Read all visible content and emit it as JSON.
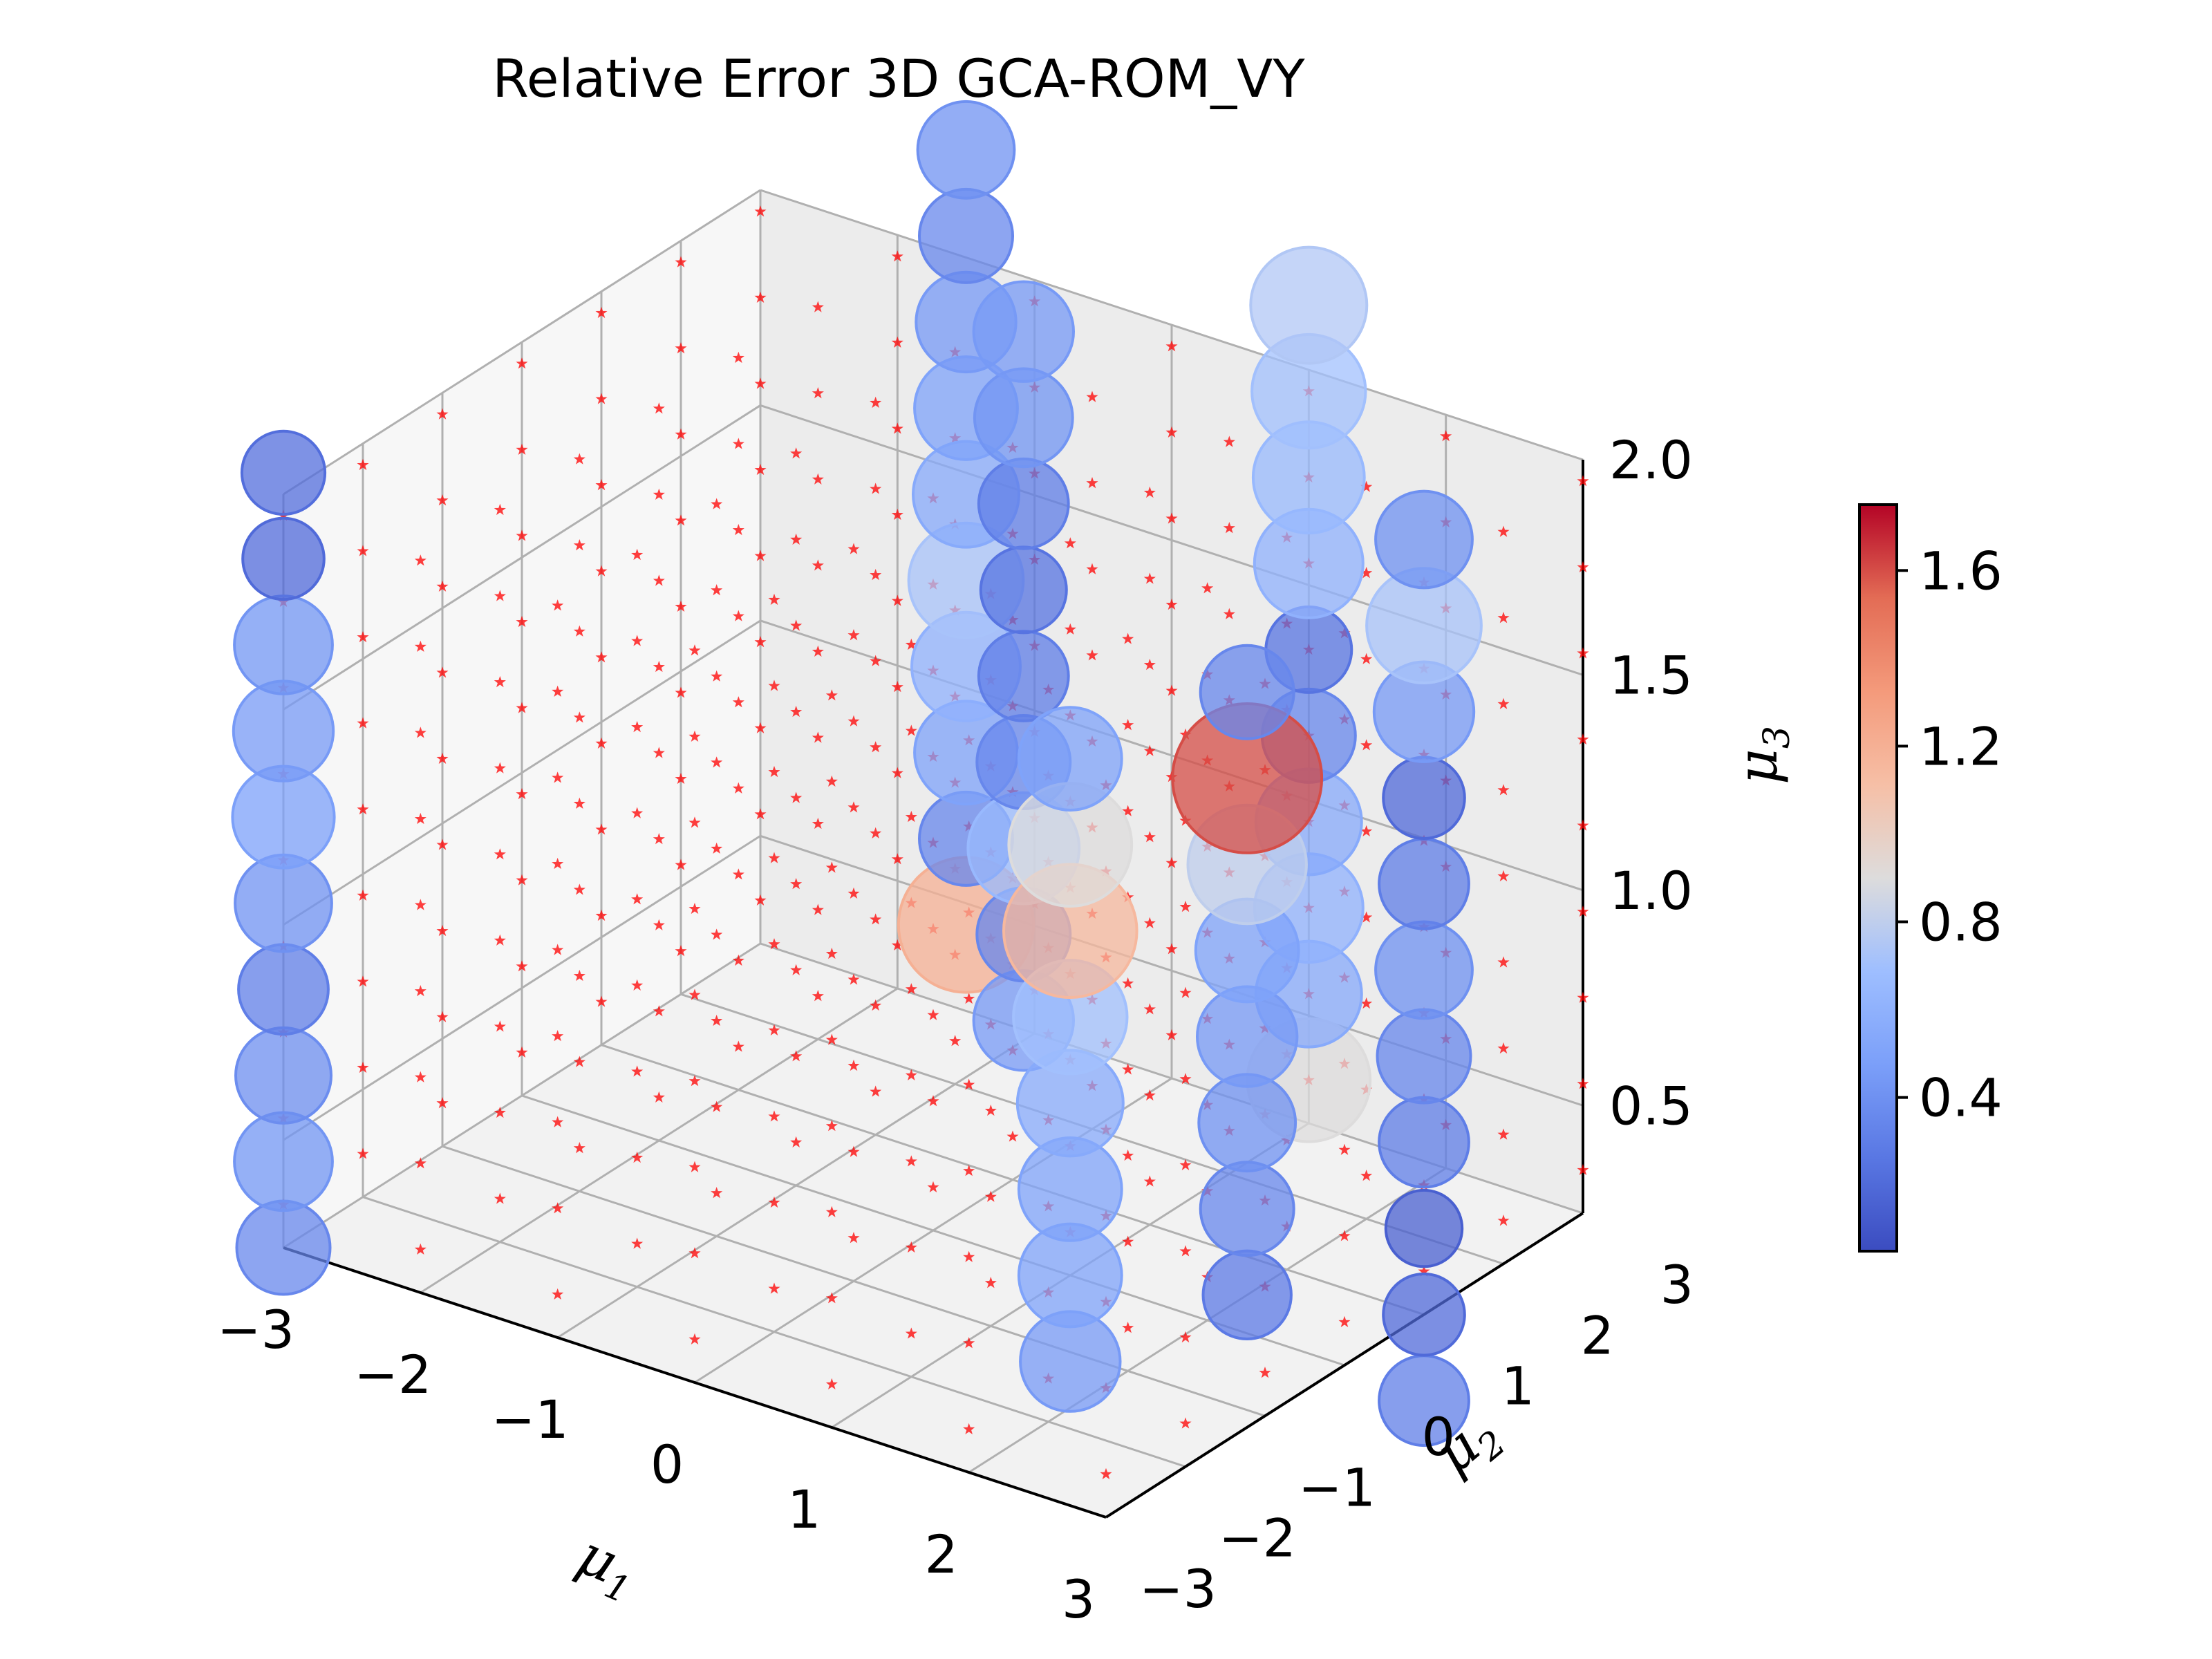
{
  "chart_data": {
    "type": "scatter",
    "title": "Relative Error 3D GCA-ROM_VY",
    "axes": {
      "x": {
        "symbol": "μ",
        "subscript": "1",
        "range": [
          -3,
          3
        ],
        "ticks": [
          "−3",
          "−2",
          "−1",
          "0",
          "1",
          "2",
          "3"
        ]
      },
      "y": {
        "symbol": "μ",
        "subscript": "2",
        "range": [
          -3,
          3
        ],
        "ticks": [
          "−3",
          "−2",
          "−1",
          "0",
          "1",
          "2",
          "3"
        ]
      },
      "z": {
        "symbol": "μ",
        "subscript": "3",
        "range": [
          0.25,
          2.0
        ],
        "ticks": [
          "0.5",
          "1.0",
          "1.5",
          "2.0"
        ]
      }
    },
    "colorbar": {
      "colormap": "coolwarm",
      "range": [
        0.05,
        1.75
      ],
      "ticks": [
        "0.4",
        "0.8",
        "1.2",
        "1.6"
      ]
    },
    "grid": true,
    "view": {
      "elevation_deg": 30,
      "azimuth_deg": -60
    },
    "training_points": {
      "marker": "star",
      "color": "#ff0000",
      "mu1": [
        -3,
        -2,
        -1,
        0,
        1,
        2,
        3
      ],
      "mu2": [
        -3,
        -2,
        -1,
        0,
        1,
        2,
        3
      ],
      "mu3": [
        0.35,
        0.55,
        0.75,
        0.95,
        1.15,
        1.35,
        1.55,
        1.75,
        1.95
      ]
    },
    "test_points": {
      "marker": "circle",
      "size_encodes": "relative error",
      "color_encodes": "relative error",
      "columns": [
        {
          "mu1": -3,
          "mu2": -3,
          "mu3": [
            0.25,
            0.45,
            0.65,
            0.85,
            1.05,
            1.25,
            1.45,
            1.65,
            1.85,
            2.05
          ],
          "errors": [
            0.35,
            0.42,
            0.38,
            0.3,
            0.4,
            0.48,
            0.45,
            0.42,
            0.2,
            0.22
          ]
        },
        {
          "mu1": -1.5,
          "mu2": 3,
          "mu3": [
            0.45,
            0.65,
            0.85,
            1.05,
            1.25,
            1.45,
            1.65,
            1.85,
            2.05,
            2.25
          ],
          "errors": [
            1.2,
            0.35,
            0.5,
            0.6,
            0.72,
            0.55,
            0.5,
            0.45,
            0.35,
            0.4
          ]
        },
        {
          "mu1": -0.5,
          "mu2": 2,
          "mu3": [
            0.45,
            0.65,
            0.85,
            1.05,
            1.25,
            1.45,
            1.65,
            1.85,
            2.05
          ],
          "errors": [
            0.45,
            0.35,
            0.65,
            0.35,
            0.3,
            0.25,
            0.3,
            0.42,
            0.45
          ]
        },
        {
          "mu1": 1,
          "mu2": 3,
          "mu3": [
            0.35,
            0.55,
            0.75,
            0.95,
            1.15,
            1.35,
            1.55,
            1.75,
            1.95,
            2.15
          ],
          "errors": [
            0.9,
            0.55,
            0.6,
            0.55,
            0.35,
            0.25,
            0.6,
            0.65,
            0.7,
            0.75
          ]
        },
        {
          "mu1": 1,
          "mu2": 0,
          "mu3": [
            0.05,
            0.25,
            0.45,
            0.65,
            0.85,
            1.05,
            1.25,
            1.45
          ],
          "errors": [
            0.45,
            0.5,
            0.5,
            0.55,
            0.7,
            1.15,
            0.9,
            0.5
          ]
        },
        {
          "mu1": 2,
          "mu2": 0.5,
          "mu3": [
            0.25,
            0.45,
            0.65,
            0.85,
            1.05,
            1.25,
            1.45,
            1.65
          ],
          "errors": [
            0.28,
            0.35,
            0.4,
            0.45,
            0.5,
            0.8,
            1.6,
            0.35
          ]
        },
        {
          "mu1": 3,
          "mu2": 1,
          "mu3": [
            0.05,
            0.25,
            0.45,
            0.65,
            0.85,
            1.05,
            1.25,
            1.45,
            1.65,
            1.85,
            2.05
          ],
          "errors": [
            0.3,
            0.2,
            0.15,
            0.3,
            0.35,
            0.4,
            0.3,
            0.2,
            0.45,
            0.72,
            0.4
          ]
        }
      ]
    }
  }
}
